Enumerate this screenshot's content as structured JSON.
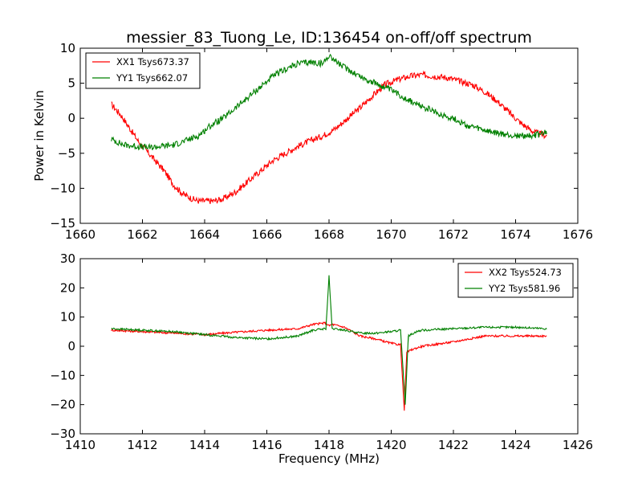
{
  "figure": {
    "title": "messier_83_Tuong_Le, ID:136454 on-off/off spectrum"
  },
  "chart_data": [
    {
      "type": "line",
      "ylabel": "Power in Kelvin",
      "xlabel": "",
      "xlim": [
        1660,
        1676
      ],
      "ylim": [
        -15,
        10
      ],
      "xticks": [
        "1660",
        "1662",
        "1664",
        "1666",
        "1668",
        "1670",
        "1672",
        "1674",
        "1676"
      ],
      "yticks": [
        "−15",
        "−10",
        "−5",
        "0",
        "5",
        "10"
      ],
      "legend_position": "top-left",
      "series": [
        {
          "name": "XX1 Tsys673.37",
          "color": "#ff0000",
          "x": [
            1661.0,
            1661.3,
            1661.6,
            1661.9,
            1662.3,
            1662.7,
            1663.0,
            1663.3,
            1663.6,
            1663.8,
            1664.0,
            1664.3,
            1664.6,
            1665.0,
            1665.4,
            1665.8,
            1666.2,
            1666.6,
            1667.0,
            1667.4,
            1667.8,
            1668.2,
            1668.6,
            1669.0,
            1669.4,
            1669.8,
            1670.2,
            1670.6,
            1671.0,
            1671.4,
            1671.8,
            1672.2,
            1672.6,
            1673.0,
            1673.4,
            1673.8,
            1674.2,
            1674.6,
            1675.0
          ],
          "y": [
            2.0,
            0.5,
            -1.5,
            -3.5,
            -5.5,
            -7.5,
            -9.5,
            -10.8,
            -11.5,
            -11.8,
            -11.8,
            -11.8,
            -11.5,
            -10.5,
            -9.0,
            -7.5,
            -6.0,
            -5.0,
            -4.0,
            -3.2,
            -2.5,
            -1.5,
            0.0,
            1.5,
            3.2,
            4.8,
            5.5,
            6.0,
            6.2,
            6.0,
            5.8,
            5.3,
            4.8,
            3.8,
            2.5,
            0.8,
            -0.8,
            -2.0,
            -2.5
          ]
        },
        {
          "name": "YY1 Tsys662.07",
          "color": "#008000",
          "x": [
            1661.0,
            1661.4,
            1661.8,
            1662.2,
            1662.6,
            1663.0,
            1663.4,
            1663.8,
            1664.2,
            1664.6,
            1665.0,
            1665.4,
            1665.8,
            1666.2,
            1666.6,
            1667.0,
            1667.4,
            1667.8,
            1668.0,
            1668.4,
            1668.8,
            1669.2,
            1669.6,
            1670.0,
            1670.4,
            1670.8,
            1671.2,
            1671.6,
            1672.0,
            1672.4,
            1672.8,
            1673.2,
            1673.6,
            1674.0,
            1674.4,
            1674.8,
            1675.0
          ],
          "y": [
            -3.0,
            -3.8,
            -4.0,
            -4.2,
            -4.0,
            -3.8,
            -3.2,
            -2.5,
            -1.0,
            0.0,
            1.5,
            3.0,
            4.5,
            6.0,
            7.0,
            7.8,
            8.0,
            7.8,
            9.0,
            7.5,
            6.5,
            5.5,
            4.8,
            4.0,
            3.0,
            2.0,
            1.3,
            0.5,
            0.0,
            -1.0,
            -1.5,
            -2.0,
            -2.3,
            -2.5,
            -2.5,
            -2.3,
            -2.0
          ]
        }
      ]
    },
    {
      "type": "line",
      "ylabel": "",
      "xlabel": "Frequency (MHz)",
      "xlim": [
        1410,
        1426
      ],
      "ylim": [
        -30,
        30
      ],
      "xticks": [
        "1410",
        "1412",
        "1414",
        "1416",
        "1418",
        "1420",
        "1422",
        "1424",
        "1426"
      ],
      "yticks": [
        "−30",
        "−20",
        "−10",
        "0",
        "10",
        "20",
        "30"
      ],
      "legend_position": "top-right",
      "series": [
        {
          "name": "XX2 Tsys524.73",
          "color": "#ff0000",
          "x": [
            1411.0,
            1412.0,
            1413.0,
            1414.0,
            1415.0,
            1416.0,
            1417.0,
            1417.5,
            1417.9,
            1418.0,
            1418.1,
            1418.5,
            1419.0,
            1419.5,
            1420.0,
            1420.3,
            1420.42,
            1420.5,
            1420.7,
            1421.0,
            1422.0,
            1423.0,
            1424.0,
            1425.0
          ],
          "y": [
            5.5,
            5.0,
            4.5,
            4.0,
            4.8,
            5.5,
            6.0,
            7.5,
            8.0,
            7.0,
            7.5,
            6.5,
            3.5,
            2.5,
            1.0,
            0.5,
            -22.0,
            -2.0,
            -1.0,
            0.0,
            1.5,
            3.5,
            3.5,
            3.5
          ]
        },
        {
          "name": "YY2 Tsys581.96",
          "color": "#008000",
          "x": [
            1411.0,
            1412.0,
            1413.0,
            1414.0,
            1415.0,
            1416.0,
            1417.0,
            1417.5,
            1417.9,
            1418.0,
            1418.1,
            1418.5,
            1419.0,
            1419.5,
            1420.0,
            1420.3,
            1420.45,
            1420.55,
            1420.8,
            1421.0,
            1422.0,
            1423.0,
            1424.0,
            1425.0
          ],
          "y": [
            6.0,
            5.5,
            5.0,
            4.0,
            3.0,
            2.5,
            3.5,
            5.5,
            6.0,
            24.0,
            6.0,
            5.5,
            4.5,
            4.5,
            5.0,
            5.5,
            -20.0,
            3.5,
            5.0,
            5.5,
            6.0,
            6.5,
            6.5,
            6.0
          ]
        }
      ]
    }
  ]
}
